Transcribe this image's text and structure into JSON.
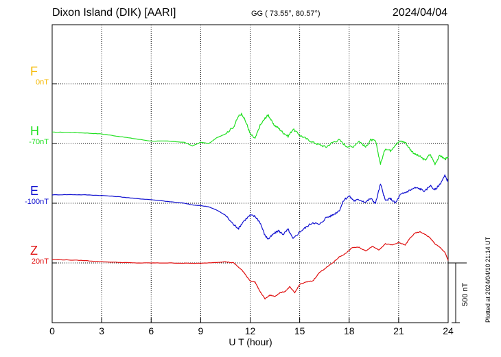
{
  "header": {
    "title": "Dixon Island (DIK)  [AARI]",
    "coords": "GG ( 73.55°,  80.57°)",
    "date": "2024/04/04"
  },
  "colors": {
    "F": "#f5b800",
    "H": "#20e020",
    "E": "#1010d0",
    "Z": "#e01010",
    "axis": "#000000"
  },
  "channels": [
    {
      "letter": "F",
      "offset": "0nT",
      "color_key": "F"
    },
    {
      "letter": "H",
      "offset": "-70nT",
      "color_key": "H"
    },
    {
      "letter": "E",
      "offset": "-100nT",
      "color_key": "E"
    },
    {
      "letter": "Z",
      "offset": "20nT",
      "color_key": "Z"
    }
  ],
  "scale_bar": {
    "label": "500 nT"
  },
  "plotted_note": "Plotted at 2024/04/10 21:14 UT",
  "chart_data": {
    "type": "line",
    "xlabel": "U T (hour)",
    "xlim": [
      0,
      24
    ],
    "x_ticks": [
      "0",
      "3",
      "6",
      "9",
      "12",
      "15",
      "18",
      "21",
      "24"
    ],
    "grid": true,
    "series": [
      {
        "name": "H",
        "color_key": "H",
        "baseline_hour": 24,
        "x": [
          0,
          1,
          2,
          3,
          4,
          5,
          6,
          7,
          8,
          8.5,
          9,
          9.5,
          10,
          10.5,
          11,
          11.3,
          11.5,
          11.8,
          12,
          12.3,
          12.6,
          12.9,
          13.1,
          13.4,
          13.7,
          14,
          14.3,
          14.6,
          15,
          15.4,
          15.8,
          16.2,
          16.6,
          17,
          17.4,
          17.8,
          18.2,
          18.6,
          19,
          19.3,
          19.6,
          19.9,
          20.2,
          20.5,
          20.8,
          21.1,
          21.4,
          21.7,
          22,
          22.3,
          22.6,
          22.9,
          23.2,
          23.5,
          23.8,
          24
        ],
        "values": [
          95,
          93,
          88,
          80,
          60,
          40,
          20,
          20,
          10,
          -20,
          10,
          0,
          50,
          80,
          140,
          230,
          250,
          160,
          80,
          40,
          150,
          210,
          240,
          160,
          130,
          90,
          60,
          120,
          70,
          40,
          10,
          -10,
          -30,
          10,
          30,
          -20,
          -30,
          20,
          -30,
          30,
          20,
          -170,
          -40,
          -60,
          -10,
          20,
          10,
          -50,
          -90,
          -110,
          -140,
          -90,
          -170,
          -100,
          -130,
          -120
        ]
      },
      {
        "name": "E",
        "color_key": "E",
        "baseline_hour": 24,
        "x": [
          0,
          1,
          2,
          3,
          4,
          5,
          6,
          7,
          8,
          8.5,
          9,
          9.5,
          10,
          10.5,
          11,
          11.3,
          11.6,
          12,
          12.3,
          12.6,
          12.9,
          13.1,
          13.4,
          13.7,
          14,
          14.3,
          14.6,
          15,
          15.4,
          15.8,
          16.2,
          16.6,
          17,
          17.4,
          17.7,
          18,
          18.3,
          18.6,
          19,
          19.3,
          19.6,
          19.9,
          20.2,
          20.5,
          20.8,
          21.1,
          21.4,
          21.7,
          22,
          22.3,
          22.6,
          22.9,
          23.2,
          23.5,
          23.8,
          24
        ],
        "values": [
          70,
          72,
          70,
          65,
          55,
          40,
          30,
          15,
          0,
          -15,
          -20,
          -30,
          -60,
          -100,
          -180,
          -210,
          -150,
          -100,
          -110,
          -160,
          -270,
          -300,
          -260,
          -230,
          -260,
          -220,
          -300,
          -240,
          -200,
          -160,
          -180,
          -120,
          -100,
          -60,
          30,
          60,
          20,
          30,
          10,
          40,
          0,
          160,
          20,
          40,
          0,
          70,
          90,
          110,
          130,
          120,
          100,
          150,
          110,
          160,
          230,
          180
        ]
      },
      {
        "name": "Z",
        "color_key": "Z",
        "baseline_hour": 24,
        "x": [
          0,
          1,
          2,
          3,
          4,
          5,
          6,
          7,
          8,
          9,
          10,
          10.5,
          11,
          11.5,
          12,
          12.3,
          12.6,
          12.9,
          13.2,
          13.5,
          13.8,
          14.1,
          14.4,
          14.7,
          15,
          15.4,
          15.8,
          16.2,
          16.6,
          17,
          17.4,
          17.8,
          18.2,
          18.6,
          19,
          19.4,
          19.8,
          20.2,
          20.6,
          21,
          21.4,
          21.7,
          22,
          22.3,
          22.6,
          22.9,
          23.2,
          23.5,
          23.8,
          24
        ],
        "values": [
          30,
          25,
          20,
          10,
          5,
          0,
          0,
          0,
          -2,
          -3,
          5,
          10,
          0,
          -60,
          -150,
          -160,
          -240,
          -300,
          -270,
          -280,
          -250,
          -240,
          -200,
          -250,
          -180,
          -160,
          -150,
          -80,
          -40,
          0,
          50,
          80,
          130,
          130,
          100,
          140,
          110,
          160,
          150,
          170,
          150,
          210,
          250,
          260,
          240,
          210,
          160,
          130,
          90,
          20
        ]
      }
    ]
  }
}
